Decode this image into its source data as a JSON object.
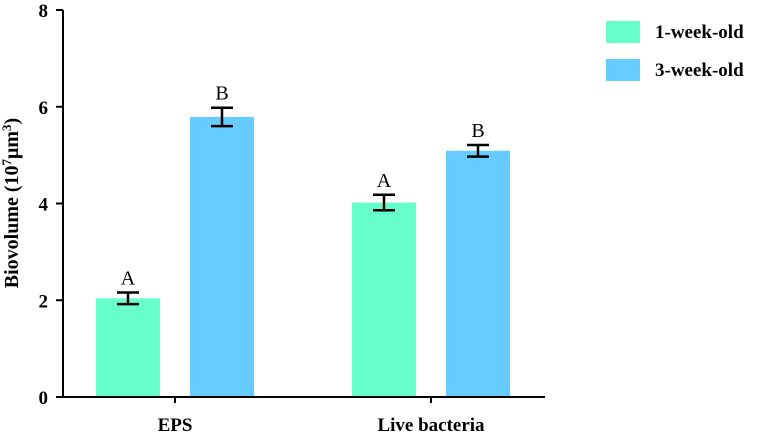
{
  "chart_data": {
    "type": "bar",
    "categories": [
      "EPS",
      "Live bacteria"
    ],
    "series": [
      {
        "name": "1-week-old",
        "color": "#66FFCC",
        "values": [
          2.04,
          4.02
        ],
        "errors": [
          0.12,
          0.16
        ],
        "letters": [
          "A",
          "A"
        ]
      },
      {
        "name": "3-week-old",
        "color": "#66CCFF",
        "values": [
          5.79,
          5.09
        ],
        "errors": [
          0.19,
          0.12
        ],
        "letters": [
          "B",
          "B"
        ]
      }
    ],
    "ylabel_main": "Biovolume (10",
    "ylabel_sup1": "7",
    "ylabel_mid": "μm",
    "ylabel_sup2": "3",
    "ylabel_end": ")",
    "ylim": [
      0,
      8
    ],
    "yticks": [
      0,
      2,
      4,
      6,
      8
    ],
    "legend_position": "top-right",
    "grid": false
  }
}
